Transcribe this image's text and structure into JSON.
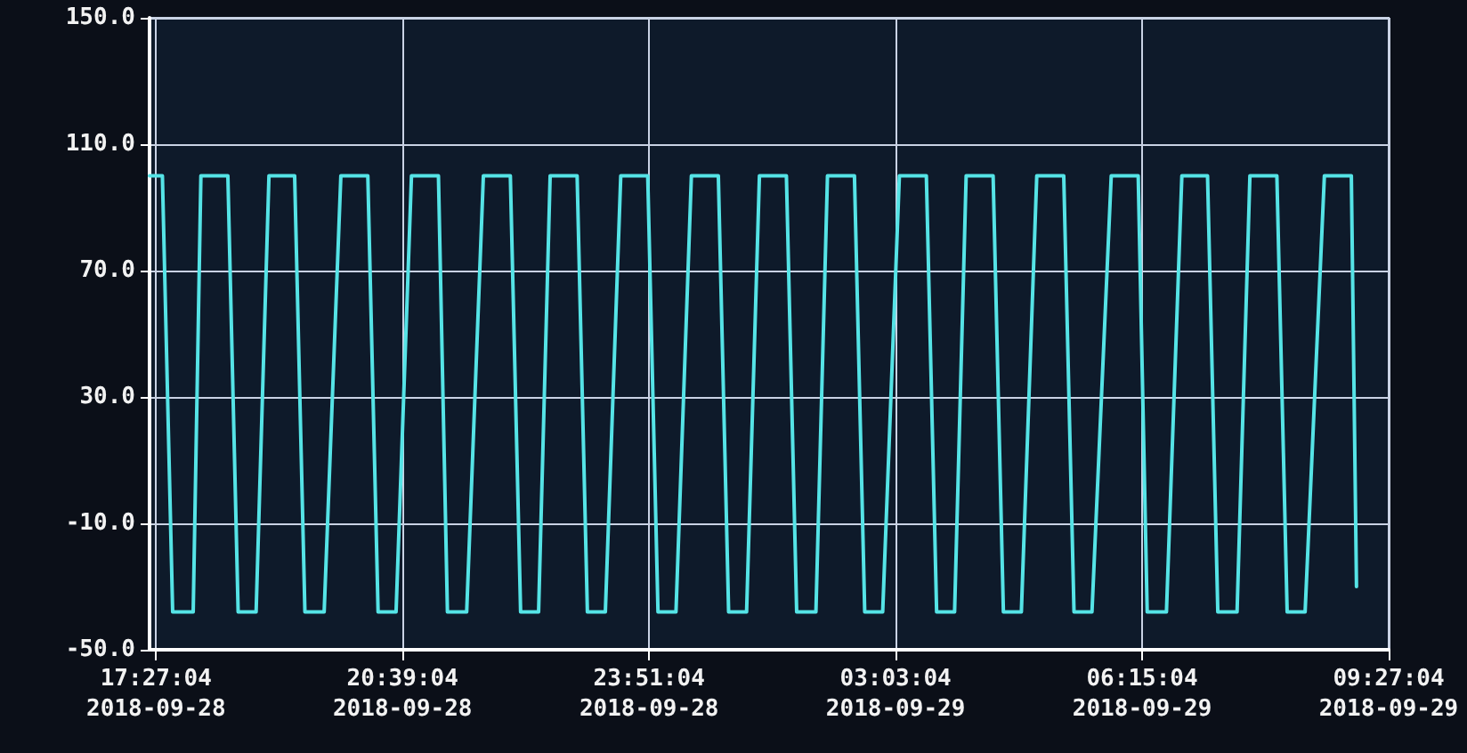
{
  "chart_data": {
    "type": "line",
    "x": [
      "2018-09-28T17:22",
      "2018-09-28T17:32",
      "2018-09-28T17:40",
      "2018-09-28T17:56",
      "2018-09-28T18:02",
      "2018-09-28T18:23",
      "2018-09-28T18:31",
      "2018-09-28T18:45",
      "2018-09-28T18:55",
      "2018-09-28T19:15",
      "2018-09-28T19:23",
      "2018-09-28T19:38",
      "2018-09-28T19:51",
      "2018-09-28T20:12",
      "2018-09-28T20:20",
      "2018-09-28T20:34",
      "2018-09-28T20:46",
      "2018-09-28T21:07",
      "2018-09-28T21:14",
      "2018-09-28T21:29",
      "2018-09-28T21:42",
      "2018-09-28T22:03",
      "2018-09-28T22:11",
      "2018-09-28T22:25",
      "2018-09-28T22:34",
      "2018-09-28T22:55",
      "2018-09-28T23:03",
      "2018-09-28T23:17",
      "2018-09-28T23:29",
      "2018-09-28T23:50",
      "2018-09-28T23:58",
      "2018-09-29T00:12",
      "2018-09-29T00:24",
      "2018-09-29T00:45",
      "2018-09-29T00:53",
      "2018-09-29T01:07",
      "2018-09-29T01:17",
      "2018-09-29T01:38",
      "2018-09-29T01:46",
      "2018-09-29T02:01",
      "2018-09-29T02:10",
      "2018-09-29T02:31",
      "2018-09-29T02:39",
      "2018-09-29T02:53",
      "2018-09-29T03:06",
      "2018-09-29T03:27",
      "2018-09-29T03:35",
      "2018-09-29T03:49",
      "2018-09-29T03:58",
      "2018-09-29T04:19",
      "2018-09-29T04:27",
      "2018-09-29T04:41",
      "2018-09-29T04:53",
      "2018-09-29T05:14",
      "2018-09-29T05:22",
      "2018-09-29T05:36",
      "2018-09-29T05:51",
      "2018-09-29T06:12",
      "2018-09-29T06:19",
      "2018-09-29T06:34",
      "2018-09-29T06:46",
      "2018-09-29T07:06",
      "2018-09-29T07:14",
      "2018-09-29T07:29",
      "2018-09-29T07:39",
      "2018-09-29T08:00",
      "2018-09-29T08:08",
      "2018-09-29T08:22",
      "2018-09-29T08:37",
      "2018-09-29T08:58",
      "2018-09-29T09:02"
    ],
    "series": [
      {
        "color": "#55e3e6",
        "values": [
          100,
          100,
          -38,
          -38,
          100,
          100,
          -38,
          -38,
          100,
          100,
          -38,
          -38,
          100,
          100,
          -38,
          -38,
          100,
          100,
          -38,
          -38,
          100,
          100,
          -38,
          -38,
          100,
          100,
          -38,
          -38,
          100,
          100,
          -38,
          -38,
          100,
          100,
          -38,
          -38,
          100,
          100,
          -38,
          -38,
          100,
          100,
          -38,
          -38,
          100,
          100,
          -38,
          -38,
          100,
          100,
          -38,
          -38,
          100,
          100,
          -38,
          -38,
          100,
          100,
          -38,
          -38,
          100,
          100,
          -38,
          -38,
          100,
          100,
          -38,
          -38,
          100,
          100,
          -30
        ]
      }
    ],
    "xlim": [
      "2018-09-28T17:22",
      "2018-09-29T09:27:04"
    ],
    "xticks": [
      {
        "value": "2018-09-28T17:27:04",
        "label": "17:27:04\n2018-09-28"
      },
      {
        "value": "2018-09-28T20:39:04",
        "label": "20:39:04\n2018-09-28"
      },
      {
        "value": "2018-09-28T23:51:04",
        "label": "23:51:04\n2018-09-28"
      },
      {
        "value": "2018-09-29T03:03:04",
        "label": "03:03:04\n2018-09-29"
      },
      {
        "value": "2018-09-29T06:15:04",
        "label": "06:15:04\n2018-09-29"
      },
      {
        "value": "2018-09-29T09:27:04",
        "label": "09:27:04\n2018-09-29"
      }
    ],
    "ylim": [
      -50,
      150
    ],
    "yticks": [
      {
        "value": -50,
        "label": "-50.0"
      },
      {
        "value": -10,
        "label": "-10.0"
      },
      {
        "value": 30,
        "label": "30.0"
      },
      {
        "value": 70,
        "label": "70.0"
      },
      {
        "value": 110,
        "label": "110.0"
      },
      {
        "value": 150,
        "label": "150.0"
      }
    ],
    "grid": true,
    "marker": "none",
    "line_style": "solid"
  }
}
